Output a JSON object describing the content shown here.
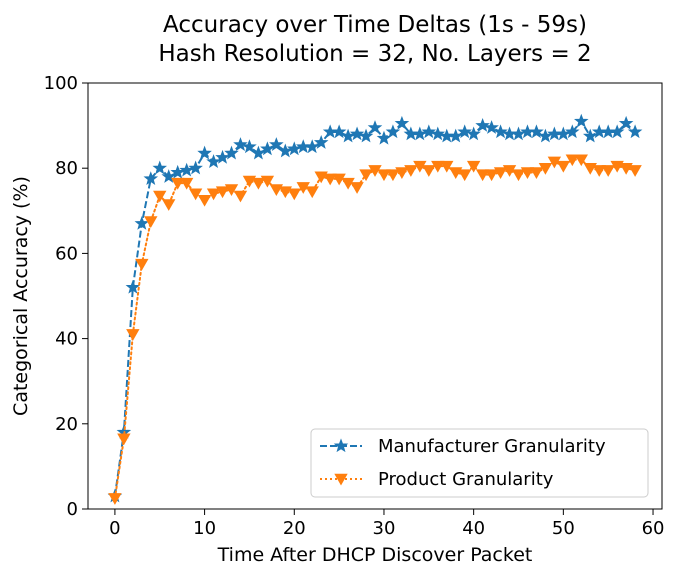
{
  "chart_data": {
    "type": "line",
    "title_line1": "Accuracy over Time Deltas (1s - 59s)",
    "title_line2": "Hash Resolution = 32, No. Layers = 2",
    "xlabel": "Time After DHCP Discover Packet",
    "ylabel": "Categorical Accuracy (%)",
    "xlim": [
      -3,
      61
    ],
    "ylim": [
      0,
      100
    ],
    "xticks": [
      0,
      10,
      20,
      30,
      40,
      50,
      60
    ],
    "yticks": [
      0,
      20,
      40,
      60,
      80,
      100
    ],
    "grid": false,
    "legend_position": "lower right",
    "x": [
      0,
      1,
      2,
      3,
      4,
      5,
      6,
      7,
      8,
      9,
      10,
      11,
      12,
      13,
      14,
      15,
      16,
      17,
      18,
      19,
      20,
      21,
      22,
      23,
      24,
      25,
      26,
      27,
      28,
      29,
      30,
      31,
      32,
      33,
      34,
      35,
      36,
      37,
      38,
      39,
      40,
      41,
      42,
      43,
      44,
      45,
      46,
      47,
      48,
      49,
      50,
      51,
      52,
      53,
      54,
      55,
      56,
      57,
      58
    ],
    "series": [
      {
        "name": "Manufacturer Granularity",
        "color": "#1f77b4",
        "line_style": "dashed",
        "marker": "star",
        "values": [
          3,
          18,
          52,
          67,
          77.5,
          80,
          78,
          79,
          79.5,
          80,
          83.5,
          81.5,
          82.5,
          83.5,
          85.5,
          85,
          83.5,
          84.5,
          85.5,
          84,
          84.5,
          85,
          85,
          86,
          88.5,
          88.5,
          87.5,
          88,
          87.5,
          89.5,
          87,
          88.5,
          90.5,
          88,
          88,
          88.5,
          88,
          87.5,
          87.5,
          88.5,
          88,
          90,
          89.5,
          88.5,
          88,
          88,
          88.5,
          88.5,
          87.5,
          88,
          88,
          88.5,
          91,
          87.5,
          88.5,
          88.5,
          88.5,
          90.5,
          88.5
        ]
      },
      {
        "name": "Product Granularity",
        "color": "#ff7f0e",
        "line_style": "dotted",
        "marker": "triangle-down",
        "values": [
          2.5,
          16.5,
          41,
          57.5,
          67.5,
          73.5,
          71.5,
          76.5,
          76.5,
          74,
          72.5,
          74,
          74.5,
          75,
          73.5,
          77,
          76.5,
          77,
          75,
          74.5,
          74,
          75.5,
          74.5,
          78,
          77.5,
          77.5,
          76.5,
          75.5,
          78.5,
          79.5,
          78.5,
          78.5,
          79,
          79.5,
          80.5,
          79.5,
          80.5,
          80.5,
          79,
          78.5,
          80.5,
          78.5,
          78.5,
          79,
          79.5,
          78.5,
          79,
          79,
          80,
          81.5,
          80.5,
          82,
          82,
          80,
          79.5,
          79.5,
          80.5,
          80,
          79.5
        ]
      }
    ]
  }
}
